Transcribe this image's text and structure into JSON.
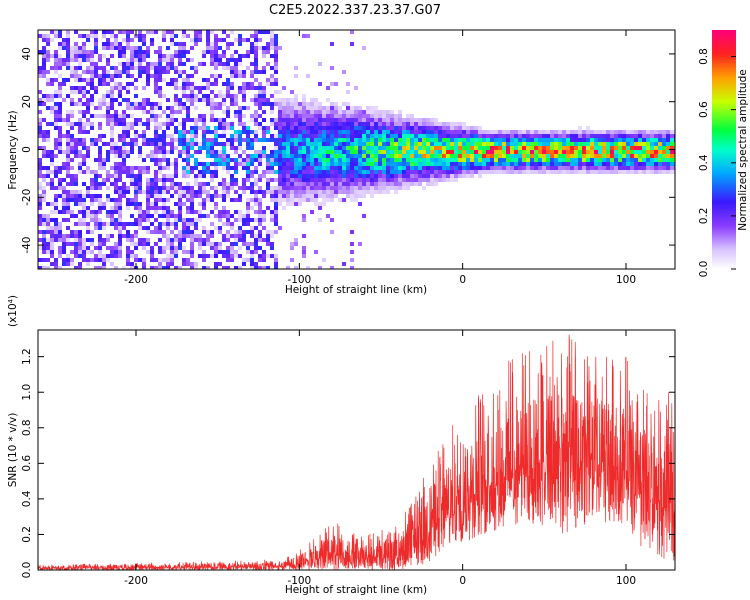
{
  "title": "C2E5.2022.337.23.37.G07",
  "colors": {
    "snr_line": "#ee2a2a",
    "colormap": [
      "#ffffff",
      "#e3ccff",
      "#b57bff",
      "#7a22ff",
      "#2b2bff",
      "#00c8ff",
      "#00ff80",
      "#ffff00",
      "#ff4000",
      "#ff0080"
    ]
  },
  "chart_data": [
    {
      "type": "heatmap",
      "xlabel": "Height of straight line (km)",
      "ylabel": "Frequency (Hz)",
      "xlim": [
        -260,
        130
      ],
      "ylim": [
        -50,
        50
      ],
      "xticks": [
        -200,
        -100,
        0,
        100
      ],
      "yticks": [
        -40,
        -20,
        0,
        20,
        40
      ],
      "colorbar": {
        "label": "Normalized spectral amplitude",
        "range": [
          0.0,
          0.9
        ],
        "ticks": [
          0.0,
          0.2,
          0.4,
          0.6,
          0.8
        ]
      },
      "description_profile": {
        "noise_region_x": [
          -260,
          -115
        ],
        "signal_center_hz": 0,
        "signal_halfwidth_hz": [
          12,
          4
        ],
        "signal_peak_x": 70
      }
    },
    {
      "type": "line",
      "xlabel": "Height of straight line (km)",
      "ylabel": "SNR (10 * v/v)",
      "y_scale_label": "(x10⁴)",
      "xlim": [
        -260,
        130
      ],
      "ylim": [
        0.0,
        1.35
      ],
      "xticks": [
        -200,
        -100,
        0,
        100
      ],
      "yticks": [
        0.0,
        0.2,
        0.4,
        0.6,
        0.8,
        1.0,
        1.2
      ],
      "envelope": {
        "x": [
          -260,
          -200,
          -150,
          -110,
          -100,
          -80,
          -60,
          -40,
          -25,
          -15,
          0,
          15,
          30,
          50,
          60,
          80,
          100,
          110,
          125,
          130
        ],
        "min": [
          0.0,
          0.0,
          0.0,
          0.0,
          0.0,
          0.0,
          0.0,
          0.0,
          0.02,
          0.08,
          0.15,
          0.2,
          0.25,
          0.25,
          0.2,
          0.25,
          0.25,
          0.1,
          0.05,
          0.05
        ],
        "max": [
          0.03,
          0.04,
          0.05,
          0.06,
          0.12,
          0.28,
          0.2,
          0.25,
          0.5,
          0.7,
          0.9,
          1.05,
          1.2,
          1.3,
          1.35,
          1.25,
          1.2,
          1.05,
          1.0,
          1.0
        ]
      }
    }
  ]
}
